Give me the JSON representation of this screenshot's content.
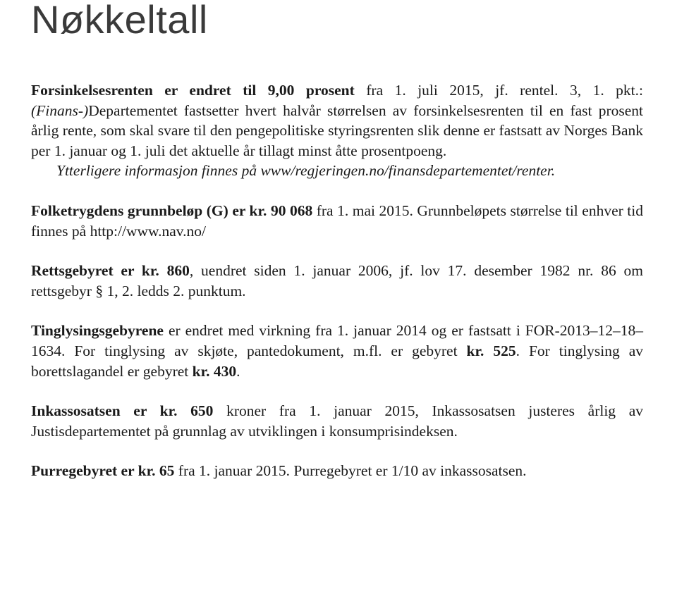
{
  "title": "Nøkkeltall",
  "p1": {
    "l1a": "Forsinkelsesrenten er endret til 9,00 prosent ",
    "l1b": "fra 1. juli 2015, jf. rentel. 3, 1. pkt.: ",
    "l2a": "(Finans-)",
    "l2b": "Departementet fastsetter hvert halvår størrelsen av forsinkelsesrenten til en fast prosent årlig rente, som skal svare til den pengepolitiske styringsrenten slik denne er fastsatt av Norges Bank per 1. januar og 1. juli det aktuelle år tillagt minst åtte prosentpoeng.",
    "l3": "Ytterligere informasjon finnes på www/regjeringen.no/finansdepartementet/renter."
  },
  "p2": {
    "a": "Folketrygdens grunnbeløp (G) er kr. 90 068 ",
    "b": "fra 1. mai 2015. Grunnbeløpets størrelse til enhver tid finnes på http://www.nav.no/"
  },
  "p3": {
    "a": "Rettsgebyret er kr. 860",
    "b": ", uendret siden 1. januar 2006, jf. lov 17. desember 1982 nr. 86 om rettsgebyr § 1, 2. ledds 2. punktum."
  },
  "p4": {
    "a": "Tinglysingsgebyrene ",
    "b": "er endret med virkning fra 1. januar 2014 og er fastsatt i FOR-2013–12–18–1634. For tinglysing av skjøte, pantedokument, m.fl. er gebyret ",
    "c": "kr. 525",
    "d": ". For tinglysing av borettslagandel er gebyret ",
    "e": "kr. 430",
    "f": "."
  },
  "p5": {
    "a": "Inkassosatsen er kr. 650 ",
    "b": "kroner fra 1. januar 2015, Inkassosatsen justeres årlig av Justisdepartementet på grunnlag av utviklingen i konsumprisindeksen."
  },
  "p6": {
    "a": "Purregebyret er kr. 65 ",
    "b": "fra 1. januar 2015. Purregebyret er 1/10 av inkassosatsen."
  }
}
